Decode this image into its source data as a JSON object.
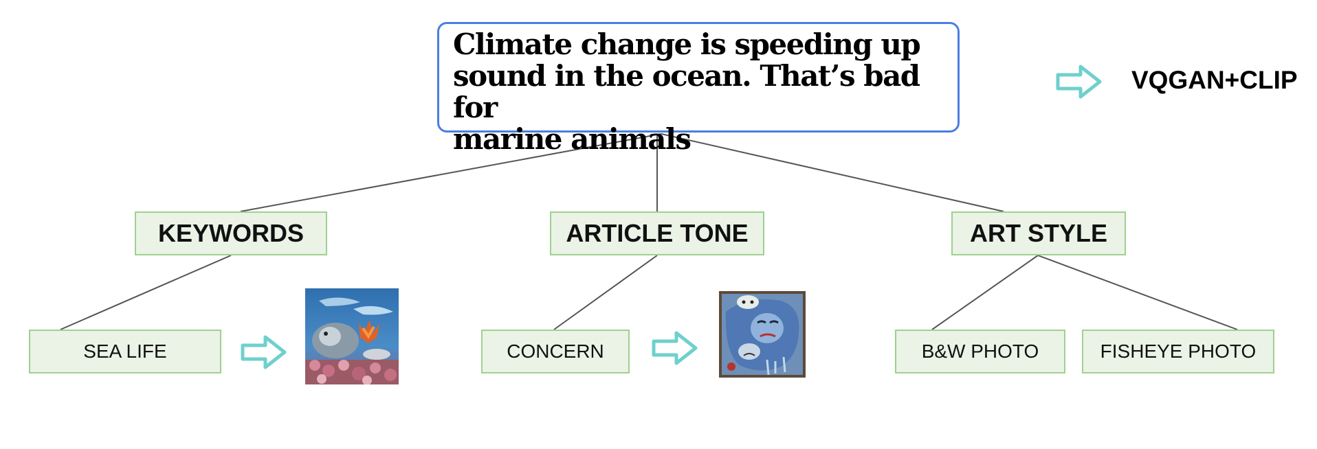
{
  "headline": {
    "lines": [
      "Climate change is speeding up",
      "sound in the ocean. That’s bad for",
      "marine animals"
    ]
  },
  "generator_label": "VQGAN+CLIP",
  "categories": {
    "keywords": "KEYWORDS",
    "article_tone": "ARTICLE TONE",
    "art_style": "ART STYLE"
  },
  "leaves": {
    "sea_life": "SEA LIFE",
    "concern": "CONCERN",
    "bw_photo": "B&W PHOTO",
    "fisheye_photo": "FISHEYE PHOTO"
  },
  "colors": {
    "headline_border": "#4a7ee0",
    "node_fill": "#eaf3e6",
    "node_border": "#9fd08f",
    "arrow": "#6fd0cc",
    "edge": "#555555"
  },
  "icons": [
    "right-arrow-icon"
  ]
}
